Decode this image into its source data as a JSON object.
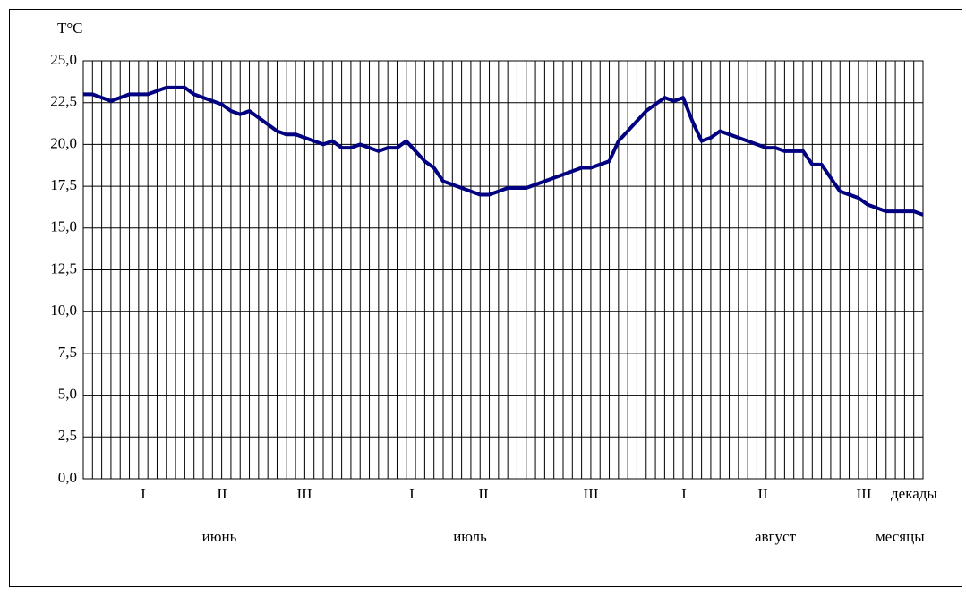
{
  "chart_data": {
    "type": "line",
    "y_label": "T°C",
    "values": [
      23.0,
      23.0,
      22.8,
      22.6,
      22.8,
      23.0,
      23.0,
      23.0,
      23.2,
      23.4,
      23.4,
      23.4,
      23.0,
      22.8,
      22.6,
      22.4,
      22.0,
      21.8,
      22.0,
      21.6,
      21.2,
      20.8,
      20.6,
      20.6,
      20.4,
      20.2,
      20.0,
      20.2,
      19.8,
      19.8,
      20.0,
      19.8,
      19.6,
      19.8,
      19.8,
      20.2,
      19.6,
      19.0,
      18.6,
      17.8,
      17.6,
      17.4,
      17.2,
      17.0,
      17.0,
      17.2,
      17.4,
      17.4,
      17.4,
      17.6,
      17.8,
      18.0,
      18.2,
      18.4,
      18.6,
      18.6,
      18.8,
      19.0,
      20.2,
      20.8,
      21.4,
      22.0,
      22.4,
      22.8,
      22.6,
      22.8,
      21.4,
      20.2,
      20.4,
      20.8,
      20.6,
      20.4,
      20.2,
      20.0,
      19.8,
      19.8,
      19.6,
      19.6,
      19.6,
      18.8,
      18.8,
      18.0,
      17.2,
      17.0,
      16.8,
      16.4,
      16.2,
      16.0,
      16.0,
      16.0,
      16.0,
      15.8
    ],
    "color": "#000080",
    "ylim": [
      0,
      25
    ],
    "yticks": [
      {
        "value": 0,
        "label": "0,0"
      },
      {
        "value": 2.5,
        "label": "2,5"
      },
      {
        "value": 5,
        "label": "5,0"
      },
      {
        "value": 7.5,
        "label": "7,5"
      },
      {
        "value": 10,
        "label": "10,0"
      },
      {
        "value": 12.5,
        "label": "12,5"
      },
      {
        "value": 15,
        "label": "15,0"
      },
      {
        "value": 17.5,
        "label": "17,5"
      },
      {
        "value": 20,
        "label": "20,0"
      },
      {
        "value": 22.5,
        "label": "22,5"
      },
      {
        "value": 25,
        "label": "25,0"
      }
    ],
    "grid": true,
    "decades": [
      "I",
      "II",
      "III",
      "I",
      "II",
      "III",
      "I",
      "II",
      "III"
    ],
    "decades_label": "декады",
    "months": [
      "июнь",
      "июль",
      "август"
    ],
    "months_label": "месяцы"
  }
}
